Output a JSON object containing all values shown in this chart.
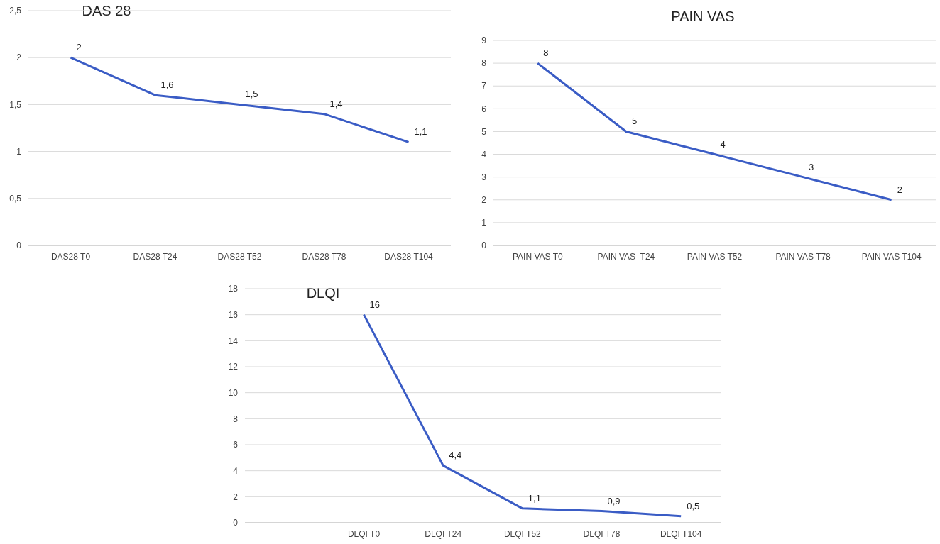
{
  "chart_data": [
    {
      "type": "line",
      "title": "DAS 28",
      "categories": [
        "DAS28 T0",
        "DAS28 T24",
        "DAS28 T52",
        "DAS28 T78",
        "DAS28 T104"
      ],
      "series": [
        {
          "color": "#3a5cc5",
          "values": [
            2,
            1.6,
            1.5,
            1.4,
            1.1
          ],
          "value_labels": [
            "2",
            "1,6",
            "1,5",
            "1,4",
            "1,1"
          ]
        }
      ],
      "ylim": [
        0,
        2.5
      ],
      "yticks": [
        0,
        {
          "value": 0.5,
          "label": "0,5"
        },
        1,
        {
          "value": 1.5,
          "label": "1,5"
        },
        2,
        {
          "value": 2.5,
          "label": "2,5"
        }
      ],
      "grid": "y",
      "marker": "none",
      "line_style": "solid"
    },
    {
      "type": "line",
      "title": "PAIN VAS",
      "categories": [
        "PAIN VAS T0",
        "PAIN VAS  T24",
        "PAIN VAS T52",
        "PAIN VAS T78",
        "PAIN VAS T104"
      ],
      "series": [
        {
          "color": "#3a5cc5",
          "values": [
            8,
            5,
            4,
            3,
            2
          ],
          "value_labels": [
            "8",
            "5",
            "4",
            "3",
            "2"
          ]
        }
      ],
      "ylim": [
        0,
        9
      ],
      "yticks": [
        0,
        1,
        2,
        3,
        4,
        5,
        6,
        7,
        8,
        9
      ],
      "grid": "y",
      "marker": "none",
      "line_style": "solid"
    },
    {
      "type": "line",
      "title": "DLQI",
      "categories": [
        null,
        "DLQI T0",
        "DLQI T24",
        "DLQI T52",
        "DLQI T78",
        "DLQI T104"
      ],
      "series": [
        {
          "color": "#3a5cc5",
          "values": [
            null,
            16,
            4.4,
            1.1,
            0.9,
            0.5
          ],
          "value_labels": [
            null,
            "16",
            "4,4",
            "1,1",
            "0,9",
            "0,5"
          ]
        }
      ],
      "ylim": [
        0,
        18
      ],
      "yticks": [
        0,
        2,
        4,
        6,
        8,
        10,
        12,
        14,
        16,
        18
      ],
      "grid": "y",
      "marker": "none",
      "line_style": "solid"
    }
  ]
}
